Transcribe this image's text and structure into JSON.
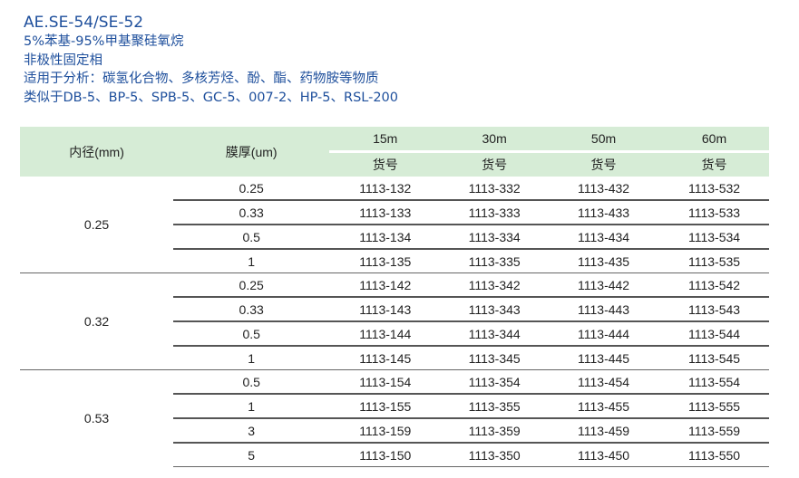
{
  "header": {
    "title": "AE.SE-54/SE-52",
    "lines": [
      "5%苯基-95%甲基聚硅氧烷",
      "非极性固定相",
      "适用于分析：碳氢化合物、多核芳烃、酚、酯、药物胺等物质",
      "类似于DB-5、BP-5、SPB-5、GC-5、007-2、HP-5、RSL-200"
    ]
  },
  "table": {
    "col_id": "内径(mm)",
    "col_film": "膜厚(um)",
    "lengths": [
      "15m",
      "30m",
      "50m",
      "60m"
    ],
    "part_label": "货号",
    "groups": [
      {
        "id": "0.25",
        "rows": [
          {
            "film": "0.25",
            "parts": [
              "1113-132",
              "1113-332",
              "1113-432",
              "1113-532"
            ]
          },
          {
            "film": "0.33",
            "parts": [
              "1113-133",
              "1113-333",
              "1113-433",
              "1113-533"
            ]
          },
          {
            "film": "0.5",
            "parts": [
              "1113-134",
              "1113-334",
              "1113-434",
              "1113-534"
            ]
          },
          {
            "film": "1",
            "parts": [
              "1113-135",
              "1113-335",
              "1113-435",
              "1113-535"
            ]
          }
        ]
      },
      {
        "id": "0.32",
        "rows": [
          {
            "film": "0.25",
            "parts": [
              "1113-142",
              "1113-342",
              "1113-442",
              "1113-542"
            ]
          },
          {
            "film": "0.33",
            "parts": [
              "1113-143",
              "1113-343",
              "1113-443",
              "1113-543"
            ]
          },
          {
            "film": "0.5",
            "parts": [
              "1113-144",
              "1113-344",
              "1113-444",
              "1113-544"
            ]
          },
          {
            "film": "1",
            "parts": [
              "1113-145",
              "1113-345",
              "1113-445",
              "1113-545"
            ]
          }
        ]
      },
      {
        "id": "0.53",
        "rows": [
          {
            "film": "0.5",
            "parts": [
              "1113-154",
              "1113-354",
              "1113-454",
              "1113-554"
            ]
          },
          {
            "film": "1",
            "parts": [
              "1113-155",
              "1113-355",
              "1113-455",
              "1113-555"
            ]
          },
          {
            "film": "3",
            "parts": [
              "1113-159",
              "1113-359",
              "1113-459",
              "1113-559"
            ]
          },
          {
            "film": "5",
            "parts": [
              "1113-150",
              "1113-350",
              "1113-450",
              "1113-550"
            ]
          }
        ]
      }
    ]
  },
  "colors": {
    "title": "#1e4f9c",
    "header_bg": "#d6ecd6"
  }
}
